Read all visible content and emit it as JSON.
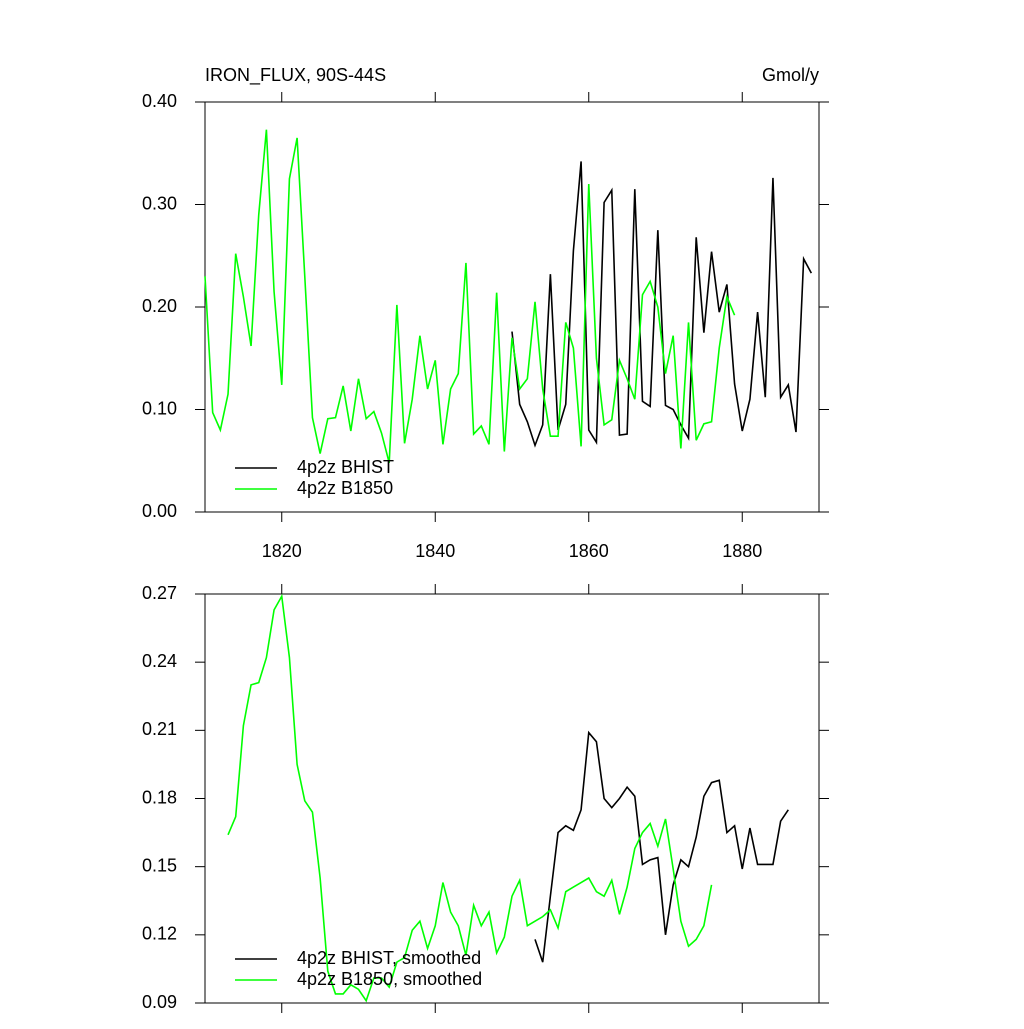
{
  "chart_data": [
    {
      "type": "line",
      "title": "IRON_FLUX, 90S-44S",
      "units": "Gmol/y",
      "x": [
        1810,
        1811,
        1812,
        1813,
        1814,
        1815,
        1816,
        1817,
        1818,
        1819,
        1820,
        1821,
        1822,
        1823,
        1824,
        1825,
        1826,
        1827,
        1828,
        1829,
        1830,
        1831,
        1832,
        1833,
        1834,
        1835,
        1836,
        1837,
        1838,
        1839,
        1840,
        1841,
        1842,
        1843,
        1844,
        1845,
        1846,
        1847,
        1848,
        1849,
        1850,
        1851,
        1852,
        1853,
        1854,
        1855,
        1856,
        1857,
        1858,
        1859,
        1860,
        1861,
        1862,
        1863,
        1864,
        1865,
        1866,
        1867,
        1868,
        1869,
        1870,
        1871,
        1872,
        1873,
        1874,
        1875,
        1876,
        1877,
        1878,
        1879,
        1880,
        1881,
        1882,
        1883,
        1884,
        1885,
        1886,
        1887,
        1888,
        1889
      ],
      "series": [
        {
          "name": "4p2z BHIST",
          "color": "#000000",
          "values": [
            null,
            null,
            null,
            null,
            null,
            null,
            null,
            null,
            null,
            null,
            null,
            null,
            null,
            null,
            null,
            null,
            null,
            null,
            null,
            null,
            null,
            null,
            null,
            null,
            null,
            null,
            null,
            null,
            null,
            null,
            null,
            null,
            null,
            null,
            null,
            null,
            null,
            null,
            null,
            null,
            0.176,
            0.105,
            0.088,
            0.065,
            0.085,
            0.232,
            0.08,
            0.105,
            0.255,
            0.342,
            0.08,
            0.068,
            0.302,
            0.314,
            0.075,
            0.076,
            0.315,
            0.108,
            0.103,
            0.275,
            0.104,
            0.1,
            0.085,
            0.072,
            0.268,
            0.175,
            0.254,
            0.195,
            0.222,
            0.125,
            0.079,
            0.11,
            0.195,
            0.112,
            0.326,
            0.112,
            0.124,
            0.078,
            0.247,
            0.233
          ]
        },
        {
          "name": "4p2z B1850",
          "color": "#00ff00",
          "values": [
            0.23,
            0.097,
            0.08,
            0.115,
            0.252,
            0.21,
            0.162,
            0.29,
            0.373,
            0.215,
            0.124,
            0.325,
            0.365,
            0.23,
            0.092,
            0.057,
            0.091,
            0.092,
            0.123,
            0.079,
            0.13,
            0.091,
            0.098,
            0.077,
            0.048,
            0.202,
            0.067,
            0.11,
            0.172,
            0.12,
            0.148,
            0.066,
            0.12,
            0.135,
            0.243,
            0.076,
            0.084,
            0.066,
            0.214,
            0.059,
            0.17,
            0.12,
            0.13,
            0.205,
            0.12,
            0.074,
            0.074,
            0.185,
            0.16,
            0.064,
            0.32,
            0.15,
            0.085,
            0.09,
            0.148,
            0.13,
            0.11,
            0.212,
            0.225,
            0.2,
            0.135,
            0.172,
            0.062,
            0.185,
            0.07,
            0.086,
            0.088,
            0.16,
            0.21,
            0.192,
            null,
            null,
            null,
            null,
            null,
            null,
            null,
            null,
            null,
            null
          ]
        }
      ],
      "xlim": [
        1810,
        1890
      ],
      "xticks": [
        1820,
        1840,
        1860,
        1880
      ],
      "ylim": [
        0,
        0.4
      ],
      "yticks": [
        {
          "value": 0,
          "label": "0.00"
        },
        {
          "value": 0.1,
          "label": "0.10"
        },
        {
          "value": 0.2,
          "label": "0.20"
        },
        {
          "value": 0.3,
          "label": "0.30"
        },
        {
          "value": 0.4,
          "label": "0.40"
        }
      ],
      "legend": "lower left"
    },
    {
      "type": "line",
      "x": [
        1813,
        1814,
        1815,
        1816,
        1817,
        1818,
        1819,
        1820,
        1821,
        1822,
        1823,
        1824,
        1825,
        1826,
        1827,
        1828,
        1829,
        1830,
        1831,
        1832,
        1833,
        1834,
        1835,
        1836,
        1837,
        1838,
        1839,
        1840,
        1841,
        1842,
        1843,
        1844,
        1845,
        1846,
        1847,
        1848,
        1849,
        1850,
        1851,
        1852,
        1853,
        1854,
        1855,
        1856,
        1857,
        1858,
        1859,
        1860,
        1861,
        1862,
        1863,
        1864,
        1865,
        1866,
        1867,
        1868,
        1869,
        1870,
        1871,
        1872,
        1873,
        1874,
        1875,
        1876,
        1877,
        1878,
        1879,
        1880,
        1881,
        1882,
        1883,
        1884,
        1885,
        1886
      ],
      "series": [
        {
          "name": "4p2z BHIST, smoothed",
          "color": "#000000",
          "values": [
            null,
            null,
            null,
            null,
            null,
            null,
            null,
            null,
            null,
            null,
            null,
            null,
            null,
            null,
            null,
            null,
            null,
            null,
            null,
            null,
            null,
            null,
            null,
            null,
            null,
            null,
            null,
            null,
            null,
            null,
            null,
            null,
            null,
            null,
            null,
            null,
            null,
            null,
            null,
            null,
            0.118,
            0.108,
            0.137,
            0.165,
            0.168,
            0.166,
            0.175,
            0.209,
            0.205,
            0.18,
            0.176,
            0.18,
            0.185,
            0.181,
            0.151,
            0.153,
            0.154,
            0.12,
            0.142,
            0.153,
            0.15,
            0.163,
            0.181,
            0.187,
            0.188,
            0.165,
            0.168,
            0.149,
            0.167,
            0.151,
            0.151,
            0.151,
            0.17,
            0.175
          ]
        },
        {
          "name": "4p2z B1850, smoothed",
          "color": "#00ff00",
          "values": [
            0.164,
            0.172,
            0.212,
            0.23,
            0.231,
            0.242,
            0.263,
            0.269,
            0.242,
            0.195,
            0.179,
            0.174,
            0.145,
            0.104,
            0.094,
            0.094,
            0.098,
            0.096,
            0.091,
            0.101,
            0.101,
            0.097,
            0.108,
            0.11,
            0.122,
            0.126,
            0.114,
            0.124,
            0.143,
            0.13,
            0.124,
            0.111,
            0.133,
            0.124,
            0.13,
            0.112,
            0.119,
            0.137,
            0.144,
            0.124,
            0.126,
            0.128,
            0.131,
            0.123,
            0.139,
            0.141,
            0.143,
            0.145,
            0.139,
            0.137,
            0.144,
            0.129,
            0.141,
            0.158,
            0.165,
            0.169,
            0.159,
            0.171,
            0.149,
            0.126,
            0.115,
            0.118,
            0.124,
            0.142,
            null,
            null,
            null,
            null,
            null,
            null,
            null,
            null,
            null,
            null
          ]
        }
      ],
      "xlim": [
        1810,
        1890
      ],
      "ylim": [
        0.09,
        0.27
      ],
      "yticks": [
        0.09,
        0.12,
        0.15,
        0.18,
        0.21,
        0.24,
        0.27
      ],
      "legend": "lower left"
    }
  ]
}
